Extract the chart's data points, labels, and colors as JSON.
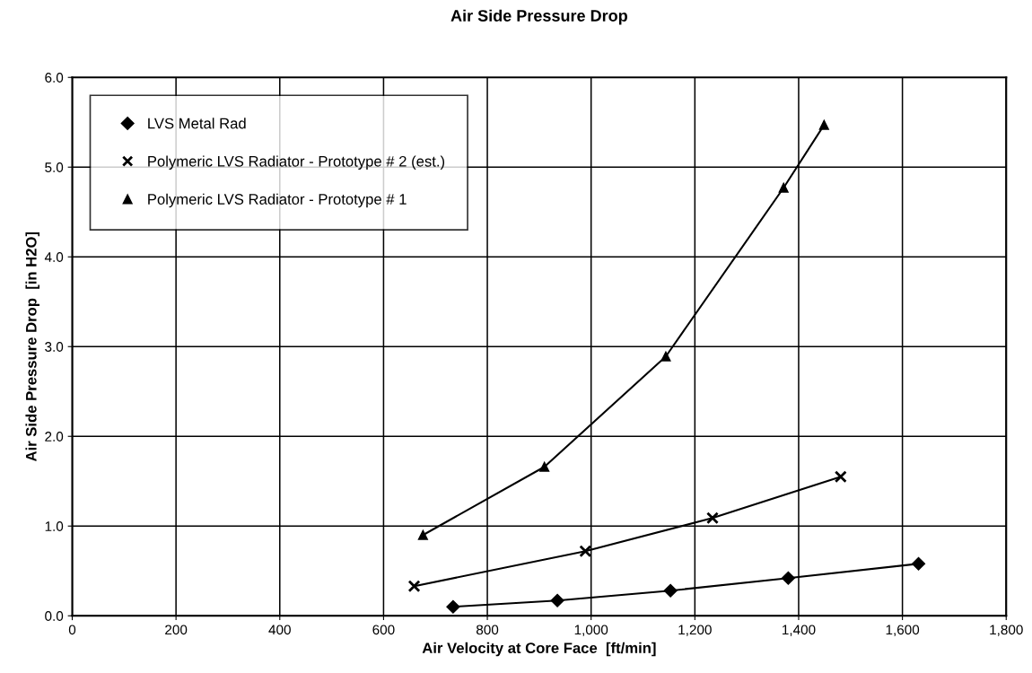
{
  "chart_data": {
    "type": "line",
    "title": "Air Side Pressure Drop",
    "xlabel": "Air Velocity at Core Face  [ft/min]",
    "ylabel": "Air Side Pressure Drop  [in H2O]",
    "xlim": [
      0,
      1800
    ],
    "ylim": [
      0,
      6.0
    ],
    "xticks": [
      0,
      200,
      400,
      600,
      800,
      {
        "value": 1000,
        "label": "1,000"
      },
      {
        "value": 1200,
        "label": "1,200"
      },
      {
        "value": 1400,
        "label": "1,400"
      },
      {
        "value": 1600,
        "label": "1,600"
      },
      {
        "value": 1800,
        "label": "1,800"
      }
    ],
    "yticks": [
      {
        "value": 0,
        "label": "0.0"
      },
      {
        "value": 1,
        "label": "1.0"
      },
      {
        "value": 2,
        "label": "2.0"
      },
      {
        "value": 3,
        "label": "3.0"
      },
      {
        "value": 4,
        "label": "4.0"
      },
      {
        "value": 5,
        "label": "5.0"
      },
      {
        "value": 6,
        "label": "6.0"
      }
    ],
    "grid": true,
    "legend": "top left",
    "line_style": "solid",
    "series": [
      {
        "name": "LVS Metal Rad",
        "color": "#000000",
        "marker": "diamond",
        "x": [
          734,
          935,
          1153,
          1380,
          1631
        ],
        "values": [
          0.1,
          0.17,
          0.28,
          0.42,
          0.58
        ]
      },
      {
        "name": "Polymeric LVS Radiator - Prototype # 2 (est.)",
        "color": "#000000",
        "marker": "cross",
        "x": [
          659,
          989,
          1234,
          1481
        ],
        "values": [
          0.33,
          0.72,
          1.09,
          1.55
        ]
      },
      {
        "name": "Polymeric LVS Radiator - Prototype # 1",
        "color": "#000000",
        "marker": "triangle",
        "x": [
          676,
          910,
          1144,
          1371,
          1449
        ],
        "values": [
          0.9,
          1.66,
          2.89,
          4.77,
          5.47
        ]
      }
    ]
  }
}
